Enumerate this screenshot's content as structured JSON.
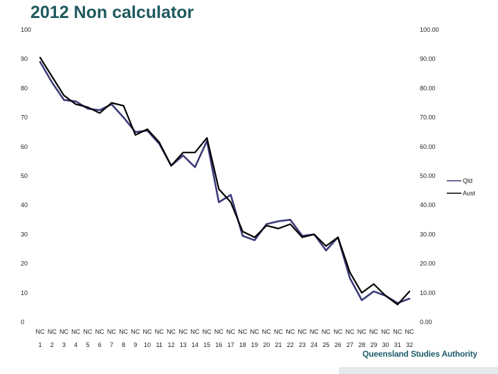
{
  "colors": {
    "qld": "#3b3a78",
    "aust": "#000000",
    "title": "#1f5a5e",
    "logo": "#1e5d6a"
  },
  "footer": {
    "logo_text": "Queensland Studies Authority"
  },
  "chart_data": {
    "type": "line",
    "title": "2012 Non calculator",
    "xlabel": "",
    "ylabel": "",
    "ylim": [
      0,
      100
    ],
    "left_ticks": [
      "0",
      "10",
      "20",
      "30",
      "40",
      "50",
      "60",
      "70",
      "80",
      "90",
      "100"
    ],
    "right_ticks": [
      "0.00",
      "10.00",
      "20.00",
      "30.00",
      "40.00",
      "50.00",
      "60.00",
      "70.00",
      "80.00",
      "90.00",
      "100.00"
    ],
    "category_prefix": [
      "NC",
      "NC",
      "NC",
      "NC",
      "NC",
      "NC",
      "NC",
      "NC",
      "NC",
      "NC",
      "NC",
      "NC",
      "NC",
      "NC",
      "NC",
      "NC",
      "NC",
      "NC",
      "NC",
      "NC",
      "NC",
      "NC",
      "NC",
      "NC",
      "NC",
      "NC",
      "NC",
      "NC",
      "NC",
      "NC",
      "NC",
      "NC"
    ],
    "categories": [
      "1",
      "2",
      "3",
      "4",
      "5",
      "6",
      "7",
      "8",
      "9",
      "10",
      "11",
      "12",
      "13",
      "14",
      "15",
      "16",
      "17",
      "18",
      "19",
      "20",
      "21",
      "22",
      "23",
      "24",
      "25",
      "26",
      "27",
      "28",
      "29",
      "30",
      "31",
      "32"
    ],
    "legend_position": "right",
    "series": [
      {
        "name": "Qld",
        "color": "#3b3a78",
        "values": [
          89,
          82,
          76,
          75.5,
          73,
          72.5,
          74.5,
          70,
          65,
          65.5,
          61,
          53.5,
          57,
          53,
          62,
          41,
          43.5,
          29.5,
          28,
          33.5,
          34.5,
          35,
          29.5,
          30,
          24.5,
          29,
          15,
          7.5,
          10.5,
          9,
          6.5,
          8
        ]
      },
      {
        "name": "Aust",
        "color": "#000000",
        "values": [
          90.5,
          84,
          77.5,
          74.5,
          73.5,
          71.5,
          75,
          74,
          64,
          66,
          61.5,
          53.5,
          58,
          58,
          63,
          45.5,
          41,
          31,
          29,
          33,
          32,
          33.5,
          29,
          30,
          26,
          29,
          17,
          10,
          13,
          9,
          6,
          10.5
        ]
      }
    ]
  }
}
